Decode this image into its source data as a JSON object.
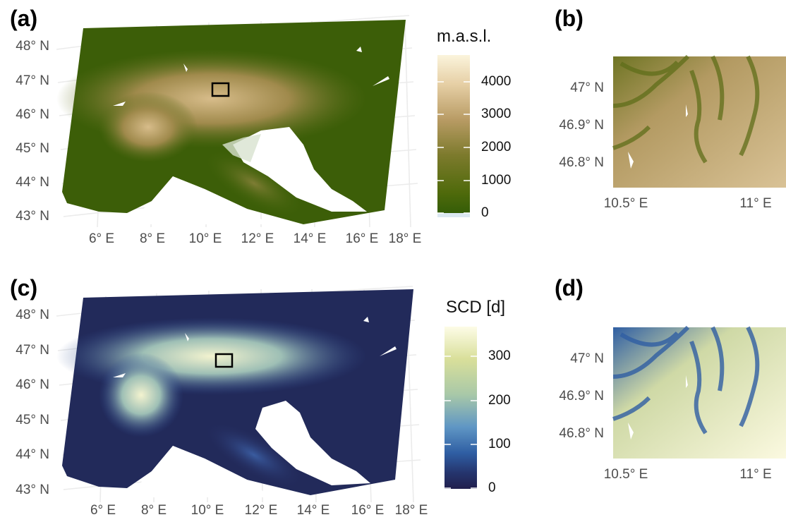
{
  "panels": {
    "a": {
      "label": "(a)",
      "lat_labels": [
        "48° N",
        "47° N",
        "46° N",
        "45° N",
        "44° N",
        "43° N"
      ],
      "lon_labels": [
        "6° E",
        "8° E",
        "10° E",
        "12° E",
        "14° E",
        "16° E",
        "18° E"
      ]
    },
    "b": {
      "label": "(b)",
      "lat_labels": [
        "47° N",
        "46.9° N",
        "46.8° N"
      ],
      "lon_labels": [
        "10.5° E",
        "11° E"
      ]
    },
    "c": {
      "label": "(c)",
      "lat_labels": [
        "48° N",
        "47° N",
        "46° N",
        "45° N",
        "44° N",
        "43° N"
      ],
      "lon_labels": [
        "6° E",
        "8° E",
        "10° E",
        "12° E",
        "14° E",
        "16° E",
        "18° E"
      ]
    },
    "d": {
      "label": "(d)",
      "lat_labels": [
        "47° N",
        "46.9° N",
        "46.8° N"
      ],
      "lon_labels": [
        "10.5° E",
        "11° E"
      ]
    }
  },
  "legends": {
    "elevation": {
      "title": "m.a.s.l.",
      "ticks": [
        "4000",
        "3000",
        "2000",
        "1000",
        "0"
      ],
      "colors": [
        "#fbf4dc",
        "#e6cfa5",
        "#b89b64",
        "#7c7a2c",
        "#4f6a0b",
        "#2f5a07"
      ]
    },
    "scd": {
      "title": "SCD [d]",
      "ticks": [
        "300",
        "200",
        "100",
        "0"
      ],
      "colors": [
        "#fdfce7",
        "#d9df9a",
        "#a8c8a8",
        "#5f96c4",
        "#2f5ea3",
        "#25356e",
        "#211f4d"
      ]
    }
  }
}
